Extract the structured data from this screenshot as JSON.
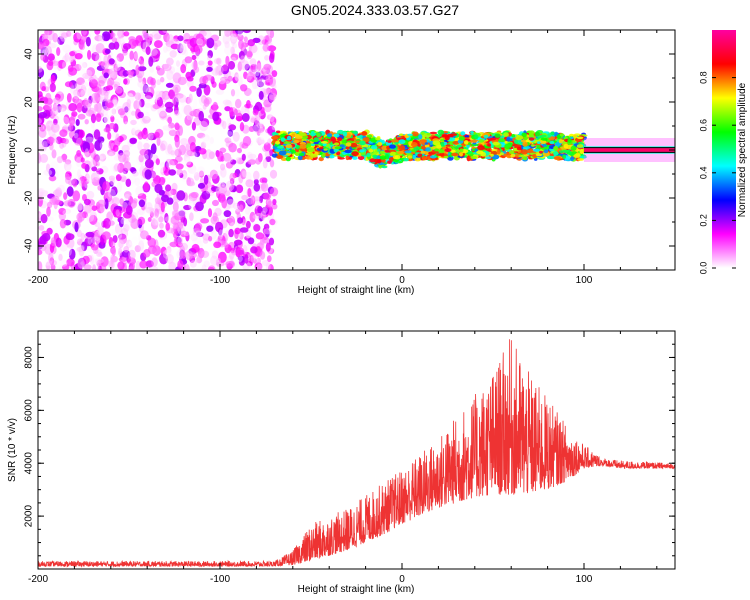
{
  "figure": {
    "title": "GN05.2024.333.03.57.G27"
  },
  "chart_data": [
    {
      "type": "heatmap",
      "xlabel": "Height of straight line (km)",
      "ylabel": "Frequency (Hz)",
      "xlim": [
        -200,
        150
      ],
      "ylim": [
        -50,
        50
      ],
      "xticks": [
        -200,
        -100,
        0,
        100
      ],
      "yticks": [
        -40,
        -20,
        0,
        20,
        40
      ],
      "colorbar": {
        "label": "Normalized spectral amplitude",
        "range": [
          0,
          1
        ],
        "ticks": [
          0.0,
          0.2,
          0.4,
          0.6,
          0.8
        ],
        "tick_labels": [
          "0.0",
          "0.2",
          "0.4",
          "0.6",
          "0.8"
        ],
        "colormap": [
          "#ffffff",
          "#ff00ff",
          "#0000ff",
          "#00ffff",
          "#00ff00",
          "#ffff00",
          "#ff0000",
          "#ff00a0"
        ]
      },
      "regions": [
        {
          "x_range": [
            -200,
            -70
          ],
          "freq_range": [
            -50,
            50
          ],
          "amplitude": [
            0.0,
            0.2
          ],
          "pattern": "scattered noise"
        },
        {
          "x_range": [
            -70,
            100
          ],
          "freq_range": [
            -5,
            7
          ],
          "amplitude": [
            0.3,
            0.9
          ],
          "pattern": "narrow band near 0 Hz"
        },
        {
          "x_range": [
            100,
            150
          ],
          "freq_range": [
            -1,
            1
          ],
          "amplitude": [
            0.9,
            1.0
          ],
          "pattern": "thin line at 0 Hz"
        }
      ],
      "band_center": {
        "x": [
          -70,
          -40,
          -20,
          -10,
          0,
          20,
          40,
          60,
          80,
          100,
          120,
          150
        ],
        "y": [
          2,
          2,
          2,
          -2,
          1,
          2,
          2,
          2,
          2,
          1,
          0,
          0
        ]
      }
    },
    {
      "type": "line",
      "xlabel": "Height of straight line (km)",
      "ylabel": "SNR (10 * v/v)",
      "xlim": [
        -200,
        150
      ],
      "ylim": [
        0,
        9000
      ],
      "xticks": [
        -200,
        -100,
        0,
        100
      ],
      "yticks": [
        2000,
        4000,
        6000,
        8000
      ],
      "series": [
        {
          "color": "#ee3333",
          "envelope": {
            "x": [
              -200,
              -100,
              -70,
              -60,
              -50,
              -40,
              -30,
              -20,
              -10,
              0,
              10,
              20,
              30,
              40,
              50,
              60,
              70,
              80,
              90,
              100,
              110,
              120,
              150
            ],
            "lower": [
              100,
              100,
              100,
              150,
              300,
              500,
              700,
              1000,
              1300,
              1700,
              2000,
              2300,
              2500,
              2700,
              2800,
              2800,
              2800,
              3000,
              3300,
              3800,
              3900,
              3800,
              3800
            ],
            "upper": [
              300,
              300,
              300,
              700,
              1700,
              2000,
              2300,
              2800,
              3300,
              3800,
              4400,
              5000,
              5800,
              6600,
              7500,
              8800,
              7400,
              6500,
              5500,
              4700,
              4200,
              4100,
              4000
            ]
          }
        }
      ]
    }
  ]
}
